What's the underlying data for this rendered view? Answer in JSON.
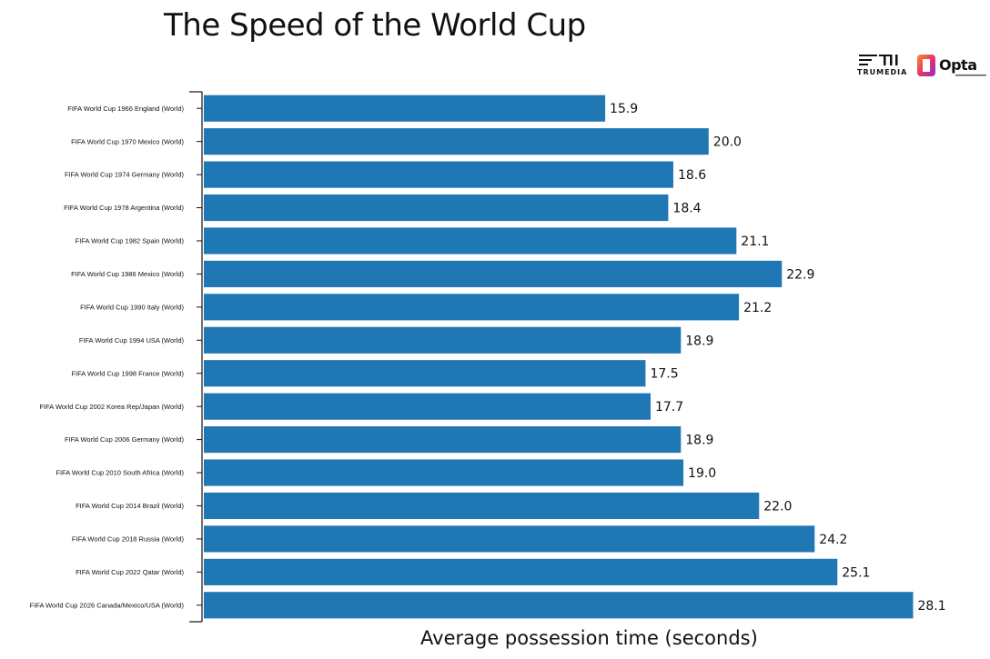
{
  "title": "The Speed of the World Cup",
  "logos": {
    "trumedia": "TRUMEDIA",
    "opta": "Opta"
  },
  "chart_data": {
    "type": "bar",
    "orientation": "horizontal",
    "title": "The Speed of the World Cup",
    "xlabel": "Average possession time (seconds)",
    "ylabel": "",
    "xlim": [
      0,
      29.2
    ],
    "grid": false,
    "bar_color": "#1f77b4",
    "categories": [
      "FIFA World Cup 1966 England (World)",
      "FIFA World Cup 1970 Mexico (World)",
      "FIFA World Cup 1974 Germany (World)",
      "FIFA World Cup 1978 Argentina (World)",
      "FIFA World Cup 1982 Spain (World)",
      "FIFA World Cup 1986 Mexico (World)",
      "FIFA World Cup 1990 Italy (World)",
      "FIFA World Cup 1994 USA (World)",
      "FIFA World Cup 1998 France (World)",
      "FIFA World Cup 2002 Korea Rep/Japan (World)",
      "FIFA World Cup 2006 Germany (World)",
      "FIFA World Cup 2010 South Africa (World)",
      "FIFA World Cup 2014 Brazil (World)",
      "FIFA World Cup 2018 Russia (World)",
      "FIFA World Cup 2022 Qatar (World)",
      "FIFA World Cup 2026 Canada/Mexico/USA (World)"
    ],
    "values": [
      15.9,
      20.0,
      18.6,
      18.4,
      21.1,
      22.9,
      21.2,
      18.9,
      17.5,
      17.7,
      18.9,
      19.0,
      22.0,
      24.2,
      25.1,
      28.1
    ],
    "value_labels": [
      "15.9",
      "20.0",
      "18.6",
      "18.4",
      "21.1",
      "22.9",
      "21.2",
      "18.9",
      "17.5",
      "17.7",
      "18.9",
      "19.0",
      "22.0",
      "24.2",
      "25.1",
      "28.1"
    ]
  }
}
